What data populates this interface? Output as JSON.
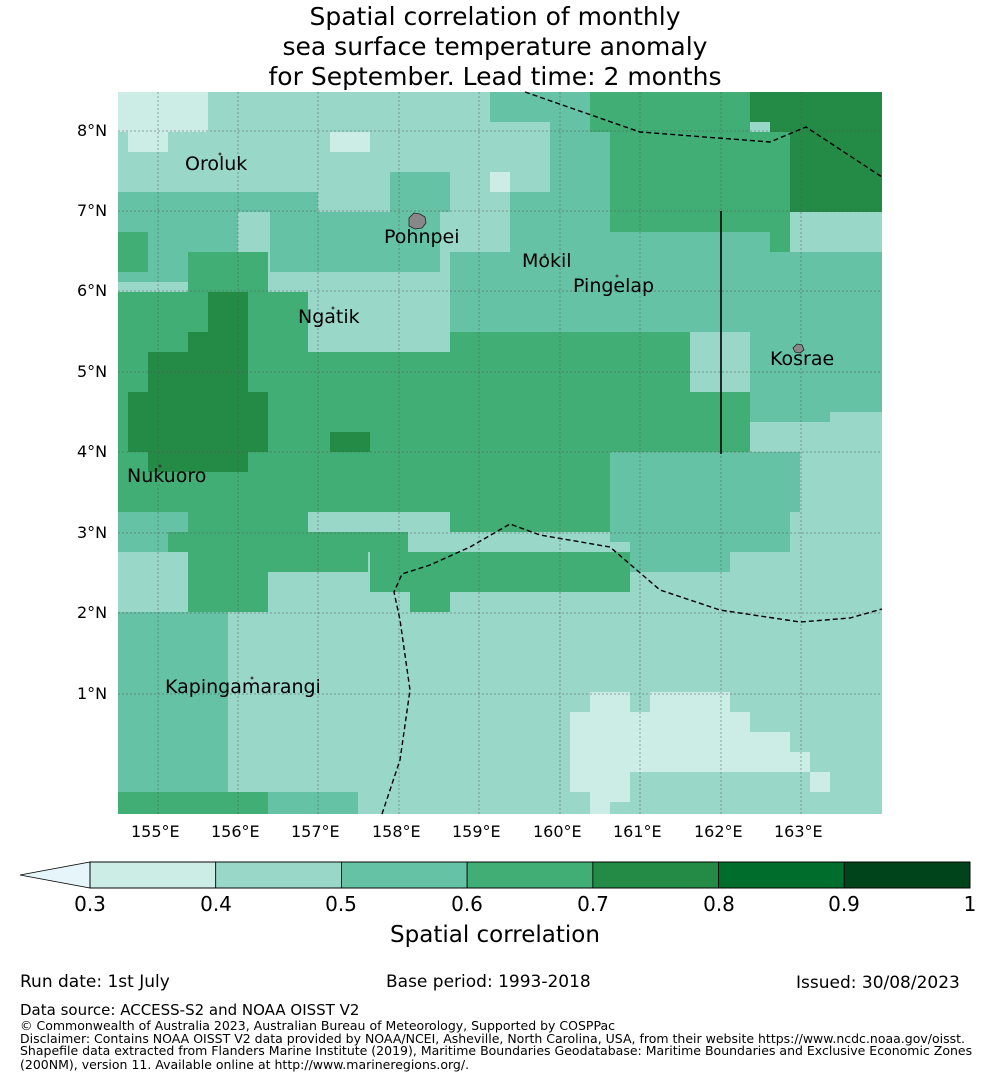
{
  "title": {
    "line1": "Spatial correlation of monthly",
    "line2": "sea surface temperature anomaly",
    "line3": "for September. Lead time: 2 months"
  },
  "map": {
    "lat_labels": [
      "8°N",
      "7°N",
      "6°N",
      "5°N",
      "4°N",
      "3°N",
      "2°N",
      "1°N"
    ],
    "lon_labels": [
      "155°E",
      "156°E",
      "157°E",
      "158°E",
      "159°E",
      "160°E",
      "161°E",
      "162°E",
      "163°E"
    ],
    "places": [
      {
        "name": "Oroluk"
      },
      {
        "name": "Pohnpei"
      },
      {
        "name": "Mokil"
      },
      {
        "name": "Pingelap"
      },
      {
        "name": "Ngatik"
      },
      {
        "name": "Kosrae"
      },
      {
        "name": "Nukuoro"
      },
      {
        "name": "Kapingamarangi"
      }
    ],
    "lon_range": [
      154.5,
      164.0
    ],
    "lat_range": [
      -0.25,
      8.5
    ],
    "grid": true,
    "boundary_style": "dashed"
  },
  "colorbar": {
    "label": "Spatial correlation",
    "ticks": [
      "0.3",
      "0.4",
      "0.5",
      "0.6",
      "0.7",
      "0.8",
      "0.9",
      "1"
    ],
    "colors": [
      "#ccece6",
      "#99d8c9",
      "#66c2a4",
      "#41ae76",
      "#238b45",
      "#006d2c",
      "#00441b"
    ],
    "under_color": "#e5f5f9"
  },
  "footer": {
    "run_date": "Run date: 1st July",
    "base_period": "Base period: 1993-2018",
    "issued": "Issued: 30/08/2023",
    "data_source": "Data source: ACCESS-S2 and NOAA OISST V2",
    "copyright": "© Commonwealth of Australia 2023, Australian Bureau of Meteorology, Supported by COSPPac",
    "disclaimer1": "Disclaimer: Contains NOAA OISST V2 data provided by NOAA/NCEI, Asheville, North Carolina, USA, from their website https://www.ncdc.noaa.gov/oisst.",
    "disclaimer2": "Shapefile data extracted from Flanders Marine Institute (2019), Maritime Boundaries Geodatabase: Maritime Boundaries and Exclusive Economic Zones",
    "disclaimer3": "(200NM), version 11. Available online at http://www.marineregions.org/."
  }
}
